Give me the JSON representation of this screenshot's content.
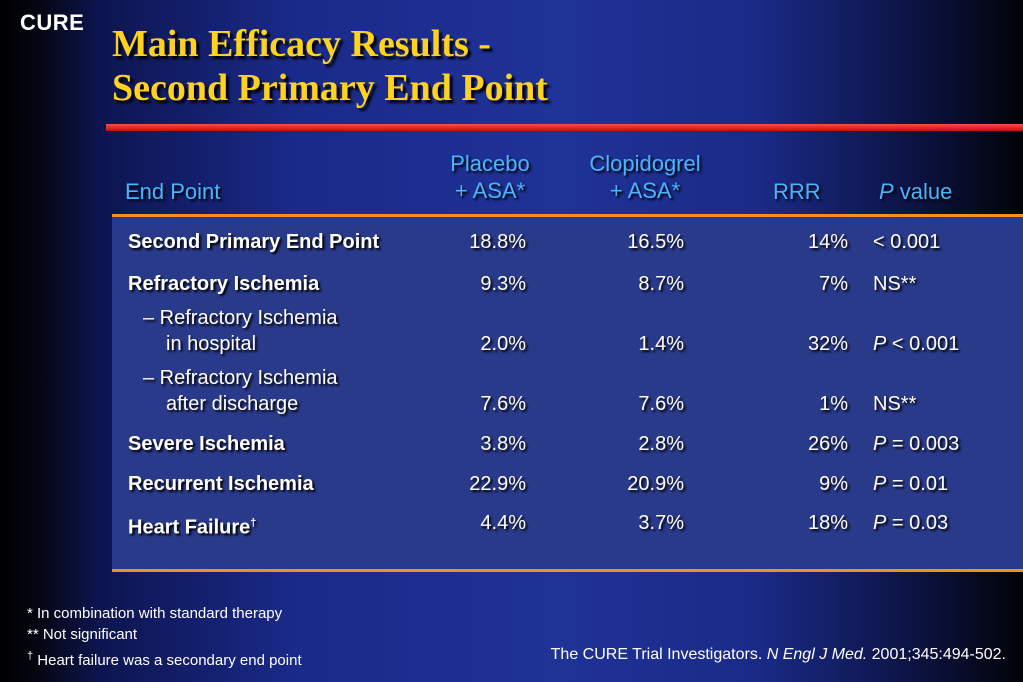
{
  "logo": "CURE",
  "title_line1": "Main Efficacy Results -",
  "title_line2": "Second Primary End Point",
  "header": {
    "endpoint": "End Point",
    "placebo_l1": "Placebo",
    "placebo_l2": "+ ASA*",
    "clop_l1": "Clopidogrel",
    "clop_l2": "+ ASA*",
    "rrr": "RRR",
    "p_italic": "P",
    "p_rest": " value"
  },
  "rows": [
    {
      "label": "Second Primary End Point",
      "placebo": "18.8%",
      "clop": "16.5%",
      "rrr": "14%",
      "p_prefix": "",
      "p": "< 0.001"
    },
    {
      "label": "Refractory Ischemia",
      "placebo": "9.3%",
      "clop": "8.7%",
      "rrr": "7%",
      "p_prefix": "",
      "p": "NS**"
    },
    {
      "label_l1": "– Refractory Ischemia",
      "label_l2": "in hospital",
      "placebo": "2.0%",
      "clop": "1.4%",
      "rrr": "32%",
      "p_prefix": "P",
      "p": " < 0.001"
    },
    {
      "label_l1": "– Refractory Ischemia",
      "label_l2": "after discharge",
      "placebo": "7.6%",
      "clop": "7.6%",
      "rrr": "1%",
      "p_prefix": "",
      "p": "NS**"
    },
    {
      "label": "Severe Ischemia",
      "placebo": "3.8%",
      "clop": "2.8%",
      "rrr": "26%",
      "p_prefix": "P",
      "p": " = 0.003"
    },
    {
      "label": "Recurrent Ischemia",
      "placebo": "22.9%",
      "clop": "20.9%",
      "rrr": "9%",
      "p_prefix": "P",
      "p": " = 0.01"
    },
    {
      "label": "Heart Failure",
      "label_sup": "†",
      "placebo": "4.4%",
      "clop": "3.7%",
      "rrr": "18%",
      "p_prefix": "P",
      "p": " = 0.03"
    }
  ],
  "footnotes": {
    "f1": "* In combination with standard therapy",
    "f2": "** Not significant",
    "f3_sup": "†",
    "f3": " Heart failure was a secondary end point"
  },
  "citation": {
    "pre": "The CURE Trial Investigators. ",
    "journal": "N Engl J Med.",
    "post": " 2001;345:494-502."
  }
}
